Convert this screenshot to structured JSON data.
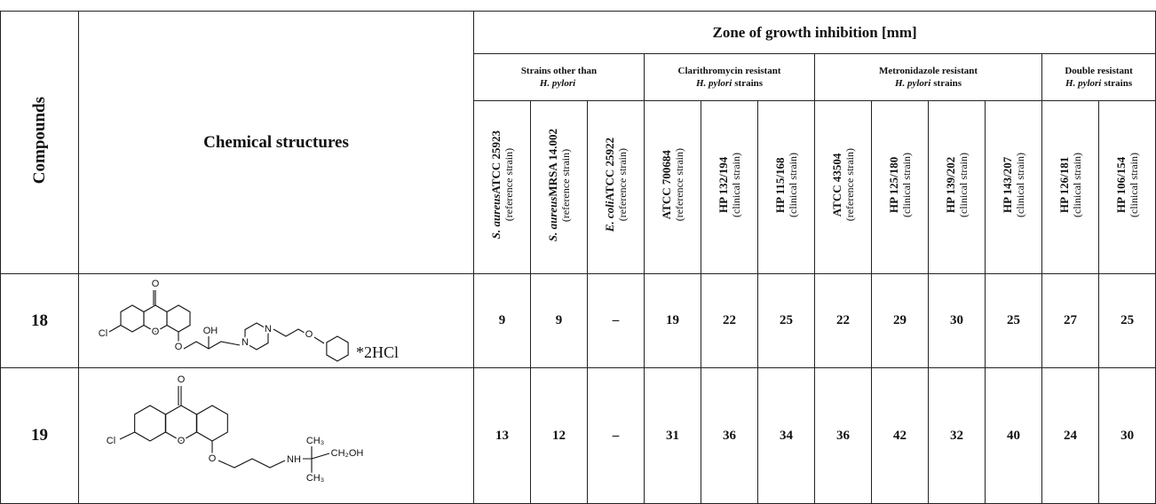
{
  "table": {
    "header": {
      "compounds": "Compounds",
      "structures": "Chemical structures",
      "zone": "Zone of growth inhibition [mm]"
    },
    "groups": [
      {
        "line1": "Strains other than",
        "italic": "H. pylori",
        "rest": ""
      },
      {
        "line1": "Clarithromycin resistant",
        "italic": "H. pylori",
        "rest": "strains"
      },
      {
        "line1": "Metronidazole resistant",
        "italic": "H. pylori",
        "rest": "strains"
      },
      {
        "line1": "Double resistant",
        "italic": "H. pylori",
        "rest": "strains"
      }
    ],
    "strains": [
      {
        "species": "S. aureus",
        "code": "ATCC 25923",
        "note": "(reference strain)"
      },
      {
        "species": "S. aureus",
        "code": "MRSA 14.002",
        "note": "(reference strain)"
      },
      {
        "species": "E. coli",
        "code": "ATCC 25922",
        "note": "(reference strain)"
      },
      {
        "species": "",
        "code": "ATCC 700684",
        "note": "(reference strain)"
      },
      {
        "species": "",
        "code": "HP 132/194",
        "note": "(clinical strain)"
      },
      {
        "species": "",
        "code": "HP 115/168",
        "note": "(clinical strain)"
      },
      {
        "species": "",
        "code": "ATCC 43504",
        "note": "(reference strain)"
      },
      {
        "species": "",
        "code": "HP 125/180",
        "note": "(clinical strain)"
      },
      {
        "species": "",
        "code": "HP 139/202",
        "note": "(clinical strain)"
      },
      {
        "species": "",
        "code": "HP 143/207",
        "note": "(clinical strain)"
      },
      {
        "species": "",
        "code": "HP 126/181",
        "note": "(clinical strain)"
      },
      {
        "species": "",
        "code": "HP 106/154",
        "note": "(clinical strain)"
      }
    ],
    "rows": [
      {
        "compound": "18",
        "atoms": [
          "O",
          "O",
          "Cl",
          "O",
          "OH",
          "N",
          "N",
          "O"
        ],
        "salt": "*2HCl",
        "values": [
          "9",
          "9",
          "–",
          "19",
          "22",
          "25",
          "22",
          "29",
          "30",
          "25",
          "27",
          "25"
        ]
      },
      {
        "compound": "19",
        "atoms": [
          "O",
          "O",
          "Cl",
          "O",
          "NH",
          "CH₃",
          "CH₂OH",
          "CH₃"
        ],
        "values": [
          "13",
          "12",
          "–",
          "31",
          "36",
          "34",
          "36",
          "42",
          "32",
          "40",
          "24",
          "30"
        ]
      }
    ]
  }
}
